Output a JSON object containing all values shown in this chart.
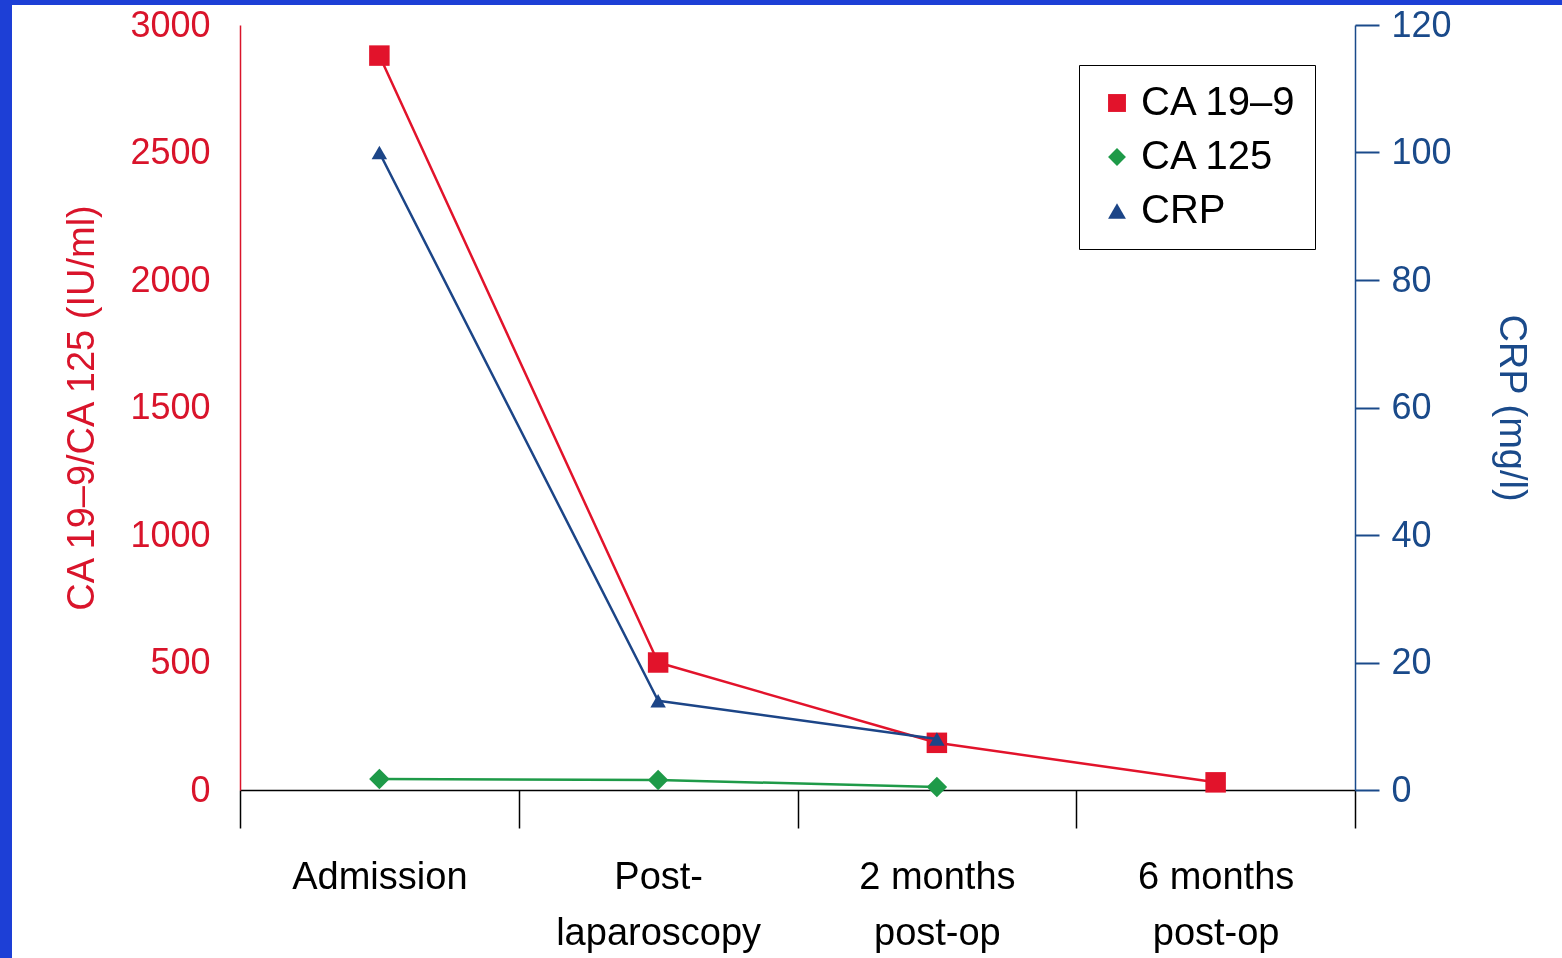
{
  "chart_data": {
    "type": "line",
    "categories": [
      "Admission",
      "Post-\nlaparoscopy",
      "2 months\npost-op",
      "6 months\npost-op"
    ],
    "ylabel": "CA 19–9/CA 125 (IU/ml)",
    "y2label": "CRP (mg/l)",
    "ylim": [
      0,
      3000
    ],
    "yticks": [
      0,
      500,
      1000,
      1500,
      2000,
      2500,
      3000
    ],
    "y2lim": [
      0,
      120
    ],
    "y2ticks": [
      0,
      20,
      40,
      60,
      80,
      100,
      120
    ],
    "series": [
      {
        "name": "CA 19–9",
        "color": "#e2132b",
        "marker": "square",
        "values": [
          2880,
          500,
          185,
          30
        ]
      },
      {
        "name": "CA 125",
        "color": "#1e9a48",
        "marker": "diamond",
        "values": [
          43,
          39,
          12,
          null
        ]
      },
      {
        "name": "CRP",
        "color": "#1c4587",
        "marker": "triangle",
        "axis": "y2",
        "values": [
          100,
          14,
          8,
          null
        ]
      }
    ],
    "legend": "top right",
    "grid": false
  }
}
